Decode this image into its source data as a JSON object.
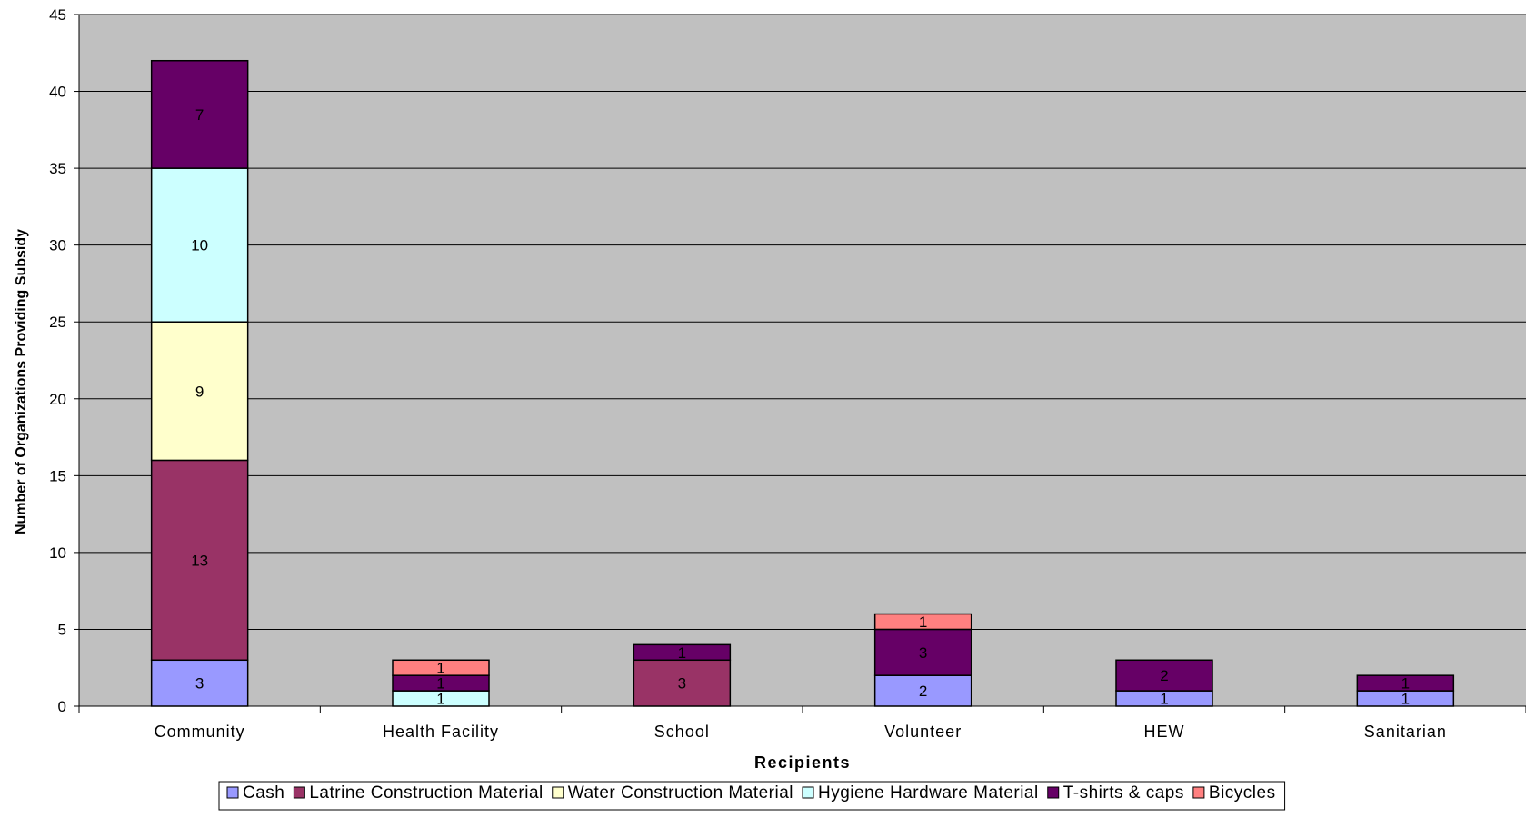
{
  "chart_data": {
    "type": "bar",
    "stacked": true,
    "title": "",
    "xlabel": "Recipients",
    "ylabel": "Number of Organizations Providing Subsidy",
    "ylim": [
      0,
      45
    ],
    "ytick_step": 5,
    "yticks": [
      "0",
      "5",
      "10",
      "15",
      "20",
      "25",
      "30",
      "35",
      "40",
      "45"
    ],
    "grid": true,
    "legend_position": "bottom",
    "plot_background": "#c0c0c0",
    "categories": [
      "Community",
      "Health Facility",
      "School",
      "Volunteer",
      "HEW",
      "Sanitarian"
    ],
    "series": [
      {
        "name": "Cash",
        "color": "#9999ff",
        "values": [
          3,
          0,
          0,
          2,
          1,
          1
        ]
      },
      {
        "name": "Latrine Construction Material",
        "color": "#993366",
        "values": [
          13,
          0,
          3,
          0,
          0,
          0
        ]
      },
      {
        "name": "Water Construction Material",
        "color": "#ffffcc",
        "values": [
          9,
          0,
          0,
          0,
          0,
          0
        ]
      },
      {
        "name": "Hygiene Hardware Material",
        "color": "#ccffff",
        "values": [
          10,
          1,
          0,
          0,
          0,
          0
        ]
      },
      {
        "name": "T-shirts & caps",
        "color": "#660066",
        "values": [
          7,
          1,
          1,
          3,
          2,
          1
        ]
      },
      {
        "name": "Bicycles",
        "color": "#ff8080",
        "values": [
          0,
          1,
          0,
          1,
          0,
          0
        ]
      }
    ]
  }
}
